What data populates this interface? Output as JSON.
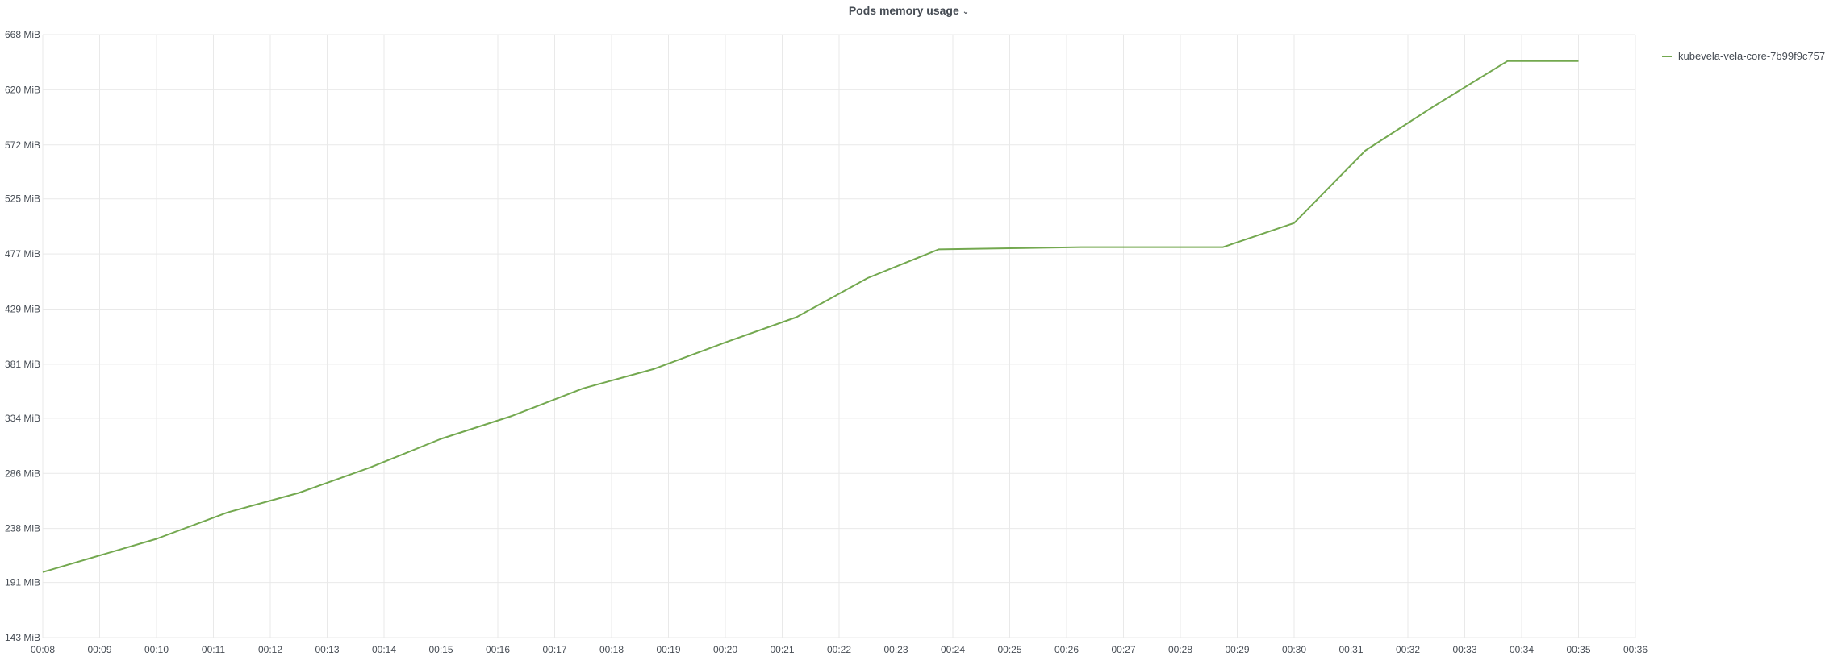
{
  "panel": {
    "title": "Pods memory usage",
    "chevron_icon": "chevron-down-icon"
  },
  "colors": {
    "series": "#73a84f",
    "grid": "#e9e9e9",
    "text": "#464c54"
  },
  "chart_data": {
    "type": "line",
    "title": "Pods memory usage",
    "xlabel": "",
    "ylabel": "",
    "grid": true,
    "legend_position": "right",
    "xlim": [
      "00:08",
      "00:36"
    ],
    "ylim": [
      143,
      668
    ],
    "x_ticks": [
      "00:08",
      "00:09",
      "00:10",
      "00:11",
      "00:12",
      "00:13",
      "00:14",
      "00:15",
      "00:16",
      "00:17",
      "00:18",
      "00:19",
      "00:20",
      "00:21",
      "00:22",
      "00:23",
      "00:24",
      "00:25",
      "00:26",
      "00:27",
      "00:28",
      "00:29",
      "00:30",
      "00:31",
      "00:32",
      "00:33",
      "00:34",
      "00:35",
      "00:36"
    ],
    "y_ticks": [
      {
        "value": 668,
        "label": "668 MiB"
      },
      {
        "value": 620,
        "label": "620 MiB"
      },
      {
        "value": 572,
        "label": "572 MiB"
      },
      {
        "value": 525,
        "label": "525 MiB"
      },
      {
        "value": 477,
        "label": "477 MiB"
      },
      {
        "value": 429,
        "label": "429 MiB"
      },
      {
        "value": 381,
        "label": "381 MiB"
      },
      {
        "value": 334,
        "label": "334 MiB"
      },
      {
        "value": 286,
        "label": "286 MiB"
      },
      {
        "value": 238,
        "label": "238 MiB"
      },
      {
        "value": 191,
        "label": "191 MiB"
      },
      {
        "value": 143,
        "label": "143 MiB"
      }
    ],
    "series": [
      {
        "name": "kubevela-vela-core-7b99f9c757",
        "color": "#73a84f",
        "x": [
          "00:08:00",
          "00:10:00",
          "00:11:15",
          "00:12:30",
          "00:13:45",
          "00:15:00",
          "00:16:15",
          "00:17:30",
          "00:18:45",
          "00:20:00",
          "00:21:15",
          "00:22:30",
          "00:23:45",
          "00:25:00",
          "00:26:15",
          "00:27:30",
          "00:28:45",
          "00:30:00",
          "00:31:15",
          "00:32:30",
          "00:33:45",
          "00:35:00"
        ],
        "values": [
          200,
          229,
          252,
          269,
          291,
          316,
          336,
          360,
          377,
          400,
          422,
          456,
          481,
          482,
          483,
          483,
          483,
          504,
          567,
          607,
          645,
          645
        ]
      }
    ]
  }
}
